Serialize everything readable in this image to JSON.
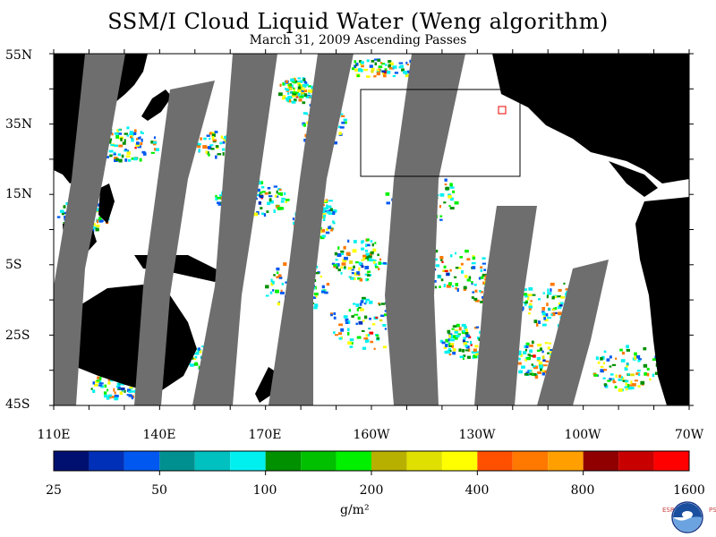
{
  "title": "SSM/I Cloud Liquid Water (Weng algorithm)",
  "subtitle": "March 31, 2009  Ascending Passes",
  "lat_labels": [
    "55N",
    "35N",
    "15N",
    "5S",
    "25S",
    "45S"
  ],
  "lon_labels": [
    "110E",
    "140E",
    "170E",
    "160W",
    "130W",
    "100W",
    "70W"
  ],
  "colorbar": {
    "colors": [
      "#001070",
      "#0030b8",
      "#0058f0",
      "#009090",
      "#00c0c0",
      "#00f0f0",
      "#009000",
      "#00c000",
      "#00f000",
      "#b8b000",
      "#e0e000",
      "#ffff00",
      "#ff5000",
      "#ff7800",
      "#ffa000",
      "#900000",
      "#c80000",
      "#ff0000"
    ],
    "labels": [
      "25",
      "50",
      "100",
      "200",
      "400",
      "800",
      "1600"
    ],
    "units": "g/m²"
  },
  "colors": {
    "land": "#000000",
    "no_data": "#6e6e6e",
    "ocean_clear": "#ffffff"
  },
  "logo": {
    "text": "NOAA",
    "left": "ESRL",
    "right": "PSD"
  }
}
